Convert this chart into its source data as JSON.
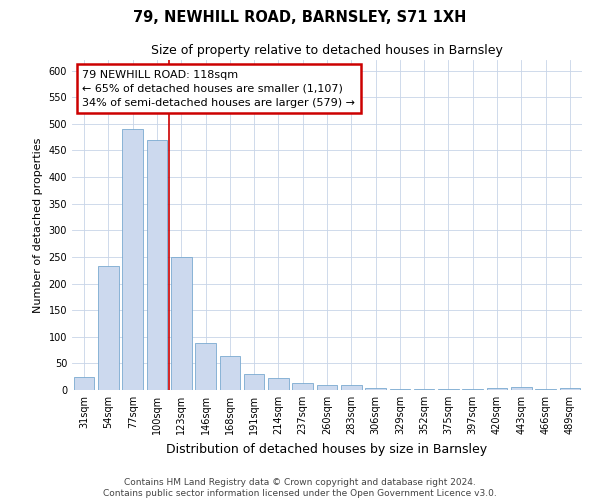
{
  "title": "79, NEWHILL ROAD, BARNSLEY, S71 1XH",
  "subtitle": "Size of property relative to detached houses in Barnsley",
  "xlabel": "Distribution of detached houses by size in Barnsley",
  "ylabel": "Number of detached properties",
  "categories": [
    "31sqm",
    "54sqm",
    "77sqm",
    "100sqm",
    "123sqm",
    "146sqm",
    "168sqm",
    "191sqm",
    "214sqm",
    "237sqm",
    "260sqm",
    "283sqm",
    "306sqm",
    "329sqm",
    "352sqm",
    "375sqm",
    "397sqm",
    "420sqm",
    "443sqm",
    "466sqm",
    "489sqm"
  ],
  "values": [
    25,
    233,
    490,
    470,
    250,
    88,
    63,
    30,
    22,
    13,
    10,
    9,
    4,
    2,
    1,
    1,
    1,
    4,
    5,
    1,
    4
  ],
  "bar_color": "#ccd9ee",
  "bar_edge_color": "#7aaad0",
  "vertical_line_color": "#cc0000",
  "red_line_x": 3.5,
  "annotation_line1": "79 NEWHILL ROAD: 118sqm",
  "annotation_line2": "← 65% of detached houses are smaller (1,107)",
  "annotation_line3": "34% of semi-detached houses are larger (579) →",
  "annotation_box_color": "#ffffff",
  "annotation_box_edge": "#cc0000",
  "background_color": "#ffffff",
  "grid_color": "#c8d4e8",
  "ylim": [
    0,
    620
  ],
  "yticks": [
    0,
    50,
    100,
    150,
    200,
    250,
    300,
    350,
    400,
    450,
    500,
    550,
    600
  ],
  "footer": "Contains HM Land Registry data © Crown copyright and database right 2024.\nContains public sector information licensed under the Open Government Licence v3.0.",
  "title_fontsize": 10.5,
  "subtitle_fontsize": 9,
  "xlabel_fontsize": 9,
  "ylabel_fontsize": 8,
  "tick_fontsize": 7,
  "annotation_fontsize": 8,
  "footer_fontsize": 6.5
}
